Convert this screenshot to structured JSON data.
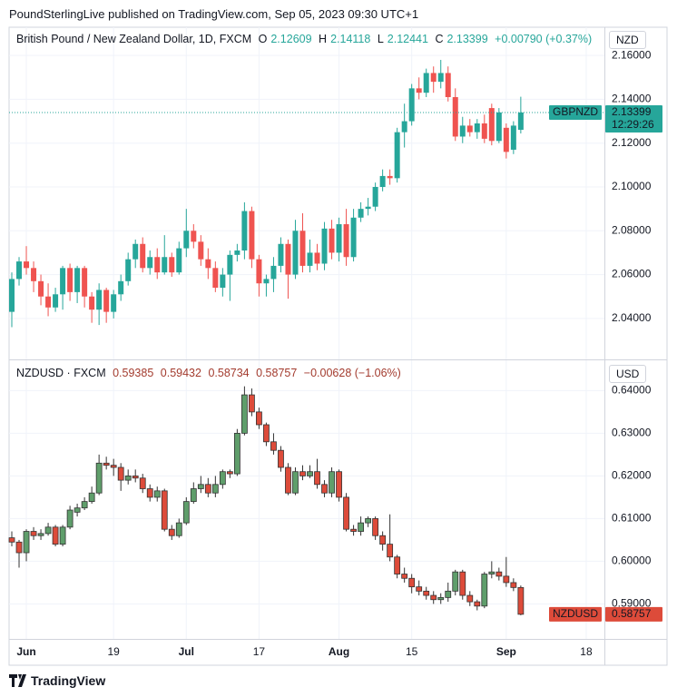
{
  "header": {
    "text": "PoundSterlingLive published on TradingView.com, Sep 05, 2023 09:30 UTC+1"
  },
  "chart_data": [
    {
      "type": "candlestick",
      "title": "British Pound / New Zealand Dollar, 1D, FXCM",
      "ohlc_labels": [
        "O",
        "H",
        "L",
        "C"
      ],
      "change_label": "+0.00790 (+0.37%)",
      "symbol": "GBPNZD",
      "countdown": "12:29:26",
      "currency": "NZD",
      "up_color": "#26a69a",
      "down_color": "#ef5350",
      "grid": true,
      "xlim": [
        -0.375,
        81.5
      ],
      "ylim": [
        2.0213,
        2.1729
      ],
      "yticks": [
        {
          "value": 2.04,
          "label": "2.04000"
        },
        {
          "value": 2.06,
          "label": "2.06000"
        },
        {
          "value": 2.08,
          "label": "2.08000"
        },
        {
          "value": 2.1,
          "label": "2.10000"
        },
        {
          "value": 2.12,
          "label": "2.12000"
        },
        {
          "value": 2.14,
          "label": "2.14000"
        },
        {
          "value": 2.16,
          "label": "2.16000"
        }
      ],
      "x": [
        0,
        1,
        2,
        3,
        4,
        5,
        6,
        7,
        8,
        9,
        10,
        11,
        12,
        13,
        14,
        15,
        16,
        17,
        18,
        19,
        20,
        21,
        22,
        23,
        24,
        25,
        26,
        27,
        28,
        29,
        30,
        31,
        32,
        33,
        34,
        35,
        36,
        37,
        38,
        39,
        40,
        41,
        42,
        43,
        44,
        45,
        46,
        47,
        48,
        49,
        50,
        51,
        52,
        53,
        54,
        55,
        56,
        57,
        58,
        59,
        60,
        61,
        62,
        63,
        64,
        65,
        66,
        67,
        68,
        69,
        70
      ],
      "open": [
        2.043,
        2.058,
        2.066,
        2.063,
        2.057,
        2.05,
        2.045,
        2.051,
        2.063,
        2.052,
        2.063,
        2.05,
        2.044,
        2.053,
        2.043,
        2.051,
        2.057,
        2.067,
        2.074,
        2.063,
        2.068,
        2.061,
        2.068,
        2.061,
        2.072,
        2.08,
        2.075,
        2.067,
        2.063,
        2.054,
        2.06,
        2.069,
        2.071,
        2.089,
        2.067,
        2.056,
        2.058,
        2.064,
        2.074,
        2.06,
        2.08,
        2.064,
        2.07,
        2.065,
        2.081,
        2.07,
        2.083,
        2.068,
        2.086,
        2.09,
        2.091,
        2.1,
        2.105,
        2.104,
        2.125,
        2.13,
        2.145,
        2.143,
        2.152,
        2.148,
        2.152,
        2.141,
        2.123,
        2.128,
        2.125,
        2.129,
        2.136,
        2.121,
        2.127,
        2.117,
        2.12609
      ],
      "high": [
        2.061,
        2.068,
        2.073,
        2.066,
        2.06,
        2.056,
        2.054,
        2.064,
        2.065,
        2.064,
        2.064,
        2.052,
        2.056,
        2.054,
        2.053,
        2.06,
        2.07,
        2.076,
        2.077,
        2.071,
        2.072,
        2.078,
        2.07,
        2.075,
        2.09,
        2.083,
        2.078,
        2.072,
        2.066,
        2.063,
        2.071,
        2.074,
        2.093,
        2.091,
        2.069,
        2.06,
        2.068,
        2.077,
        2.076,
        2.085,
        2.088,
        2.076,
        2.074,
        2.084,
        2.085,
        2.086,
        2.09,
        2.09,
        2.093,
        2.095,
        2.102,
        2.108,
        2.108,
        2.127,
        2.138,
        2.147,
        2.15,
        2.154,
        2.155,
        2.158,
        2.155,
        2.145,
        2.132,
        2.131,
        2.131,
        2.133,
        2.138,
        2.136,
        2.129,
        2.13,
        2.14118
      ],
      "low": [
        2.036,
        2.055,
        2.06,
        2.052,
        2.046,
        2.041,
        2.043,
        2.044,
        2.048,
        2.047,
        2.045,
        2.038,
        2.037,
        2.038,
        2.04,
        2.048,
        2.055,
        2.063,
        2.061,
        2.06,
        2.058,
        2.06,
        2.059,
        2.06,
        2.068,
        2.072,
        2.064,
        2.058,
        2.052,
        2.05,
        2.048,
        2.066,
        2.067,
        2.063,
        2.05,
        2.05,
        2.052,
        2.061,
        2.049,
        2.058,
        2.061,
        2.061,
        2.062,
        2.062,
        2.067,
        2.066,
        2.064,
        2.066,
        2.084,
        2.087,
        2.089,
        2.098,
        2.101,
        2.102,
        2.118,
        2.128,
        2.14,
        2.141,
        2.143,
        2.145,
        2.139,
        2.121,
        2.12,
        2.123,
        2.122,
        2.12,
        2.119,
        2.12,
        2.113,
        2.115,
        2.12441
      ],
      "close": [
        2.058,
        2.066,
        2.063,
        2.057,
        2.05,
        2.045,
        2.051,
        2.063,
        2.052,
        2.063,
        2.05,
        2.044,
        2.053,
        2.043,
        2.051,
        2.057,
        2.067,
        2.074,
        2.063,
        2.068,
        2.061,
        2.068,
        2.061,
        2.072,
        2.08,
        2.075,
        2.067,
        2.063,
        2.054,
        2.06,
        2.069,
        2.071,
        2.089,
        2.067,
        2.056,
        2.058,
        2.064,
        2.074,
        2.06,
        2.08,
        2.064,
        2.07,
        2.065,
        2.081,
        2.07,
        2.083,
        2.068,
        2.086,
        2.09,
        2.091,
        2.1,
        2.105,
        2.104,
        2.125,
        2.13,
        2.145,
        2.143,
        2.152,
        2.148,
        2.152,
        2.141,
        2.123,
        2.128,
        2.125,
        2.129,
        2.122,
        2.121,
        2.134,
        2.116,
        2.128,
        2.13399
      ]
    },
    {
      "type": "candlestick",
      "title": "NZDUSD · FXCM",
      "change_label": "−0.00628 (−1.06%)",
      "symbol": "NZDUSD",
      "currency": "USD",
      "up_color": "#5f9e6b",
      "down_color": "#dd4b3a",
      "grid": true,
      "xlim": [
        -0.375,
        81.5
      ],
      "ylim": [
        0.5818,
        0.6471
      ],
      "yticks": [
        {
          "value": 0.59,
          "label": "0.59000"
        },
        {
          "value": 0.6,
          "label": "0.60000"
        },
        {
          "value": 0.61,
          "label": "0.61000"
        },
        {
          "value": 0.62,
          "label": "0.62000"
        },
        {
          "value": 0.63,
          "label": "0.63000"
        },
        {
          "value": 0.64,
          "label": "0.64000"
        }
      ],
      "xticks": [
        {
          "value": 2,
          "label": "Jun"
        },
        {
          "value": 14,
          "label": "19"
        },
        {
          "value": 24,
          "label": "Jul"
        },
        {
          "value": 34,
          "label": "17"
        },
        {
          "value": 45,
          "label": "Aug"
        },
        {
          "value": 55,
          "label": "15"
        },
        {
          "value": 68,
          "label": "Sep"
        },
        {
          "value": 79,
          "label": "18"
        }
      ],
      "x": [
        0,
        1,
        2,
        3,
        4,
        5,
        6,
        7,
        8,
        9,
        10,
        11,
        12,
        13,
        14,
        15,
        16,
        17,
        18,
        19,
        20,
        21,
        22,
        23,
        24,
        25,
        26,
        27,
        28,
        29,
        30,
        31,
        32,
        33,
        34,
        35,
        36,
        37,
        38,
        39,
        40,
        41,
        42,
        43,
        44,
        45,
        46,
        47,
        48,
        49,
        50,
        51,
        52,
        53,
        54,
        55,
        56,
        57,
        58,
        59,
        60,
        61,
        62,
        63,
        64,
        65,
        66,
        67,
        68,
        69,
        70
      ],
      "open": [
        0.6055,
        0.6045,
        0.602,
        0.607,
        0.606,
        0.6065,
        0.608,
        0.604,
        0.608,
        0.6115,
        0.6125,
        0.614,
        0.616,
        0.623,
        0.6225,
        0.622,
        0.619,
        0.62,
        0.6195,
        0.617,
        0.615,
        0.6165,
        0.6075,
        0.606,
        0.609,
        0.614,
        0.617,
        0.618,
        0.616,
        0.618,
        0.621,
        0.6205,
        0.63,
        0.639,
        0.635,
        0.632,
        0.628,
        0.626,
        0.622,
        0.616,
        0.621,
        0.62,
        0.621,
        0.618,
        0.616,
        0.621,
        0.615,
        0.6075,
        0.607,
        0.609,
        0.61,
        0.606,
        0.604,
        0.601,
        0.597,
        0.596,
        0.594,
        0.593,
        0.592,
        0.591,
        0.5915,
        0.593,
        0.5975,
        0.592,
        0.5905,
        0.5895,
        0.597,
        0.5975,
        0.5965,
        0.595,
        0.59385
      ],
      "high": [
        0.607,
        0.605,
        0.6075,
        0.608,
        0.6075,
        0.609,
        0.6085,
        0.6085,
        0.613,
        0.6135,
        0.615,
        0.6175,
        0.625,
        0.6245,
        0.624,
        0.623,
        0.6215,
        0.6215,
        0.6205,
        0.618,
        0.6175,
        0.617,
        0.6085,
        0.61,
        0.615,
        0.6185,
        0.62,
        0.6195,
        0.62,
        0.6215,
        0.6215,
        0.631,
        0.641,
        0.6405,
        0.636,
        0.6325,
        0.63,
        0.627,
        0.623,
        0.622,
        0.6225,
        0.6225,
        0.624,
        0.619,
        0.622,
        0.6215,
        0.616,
        0.6085,
        0.6105,
        0.6105,
        0.6105,
        0.607,
        0.611,
        0.6015,
        0.5985,
        0.597,
        0.5955,
        0.594,
        0.593,
        0.5925,
        0.595,
        0.598,
        0.598,
        0.593,
        0.591,
        0.5975,
        0.6,
        0.5985,
        0.601,
        0.596,
        0.59432
      ],
      "low": [
        0.6035,
        0.5985,
        0.6,
        0.605,
        0.605,
        0.606,
        0.6035,
        0.6035,
        0.6075,
        0.6105,
        0.612,
        0.6135,
        0.6155,
        0.6215,
        0.62,
        0.6165,
        0.618,
        0.6185,
        0.616,
        0.614,
        0.614,
        0.607,
        0.605,
        0.6055,
        0.6085,
        0.6135,
        0.616,
        0.615,
        0.615,
        0.617,
        0.6195,
        0.62,
        0.6295,
        0.634,
        0.631,
        0.627,
        0.625,
        0.621,
        0.6155,
        0.6155,
        0.619,
        0.6195,
        0.617,
        0.615,
        0.615,
        0.614,
        0.607,
        0.606,
        0.606,
        0.608,
        0.605,
        0.6025,
        0.6,
        0.596,
        0.595,
        0.5925,
        0.592,
        0.591,
        0.59,
        0.59,
        0.5905,
        0.592,
        0.591,
        0.5895,
        0.5885,
        0.589,
        0.596,
        0.5955,
        0.594,
        0.593,
        0.58734
      ],
      "close": [
        0.6045,
        0.602,
        0.607,
        0.606,
        0.6065,
        0.608,
        0.604,
        0.608,
        0.612,
        0.6125,
        0.614,
        0.616,
        0.623,
        0.6225,
        0.622,
        0.619,
        0.62,
        0.6195,
        0.617,
        0.615,
        0.6165,
        0.6075,
        0.606,
        0.609,
        0.614,
        0.617,
        0.618,
        0.616,
        0.618,
        0.621,
        0.6205,
        0.63,
        0.639,
        0.635,
        0.632,
        0.628,
        0.626,
        0.622,
        0.616,
        0.621,
        0.62,
        0.621,
        0.618,
        0.616,
        0.621,
        0.615,
        0.6075,
        0.607,
        0.609,
        0.61,
        0.606,
        0.604,
        0.601,
        0.597,
        0.596,
        0.594,
        0.593,
        0.592,
        0.591,
        0.5915,
        0.593,
        0.5975,
        0.592,
        0.5905,
        0.5895,
        0.597,
        0.5975,
        0.5965,
        0.595,
        0.59385,
        0.58757
      ]
    }
  ],
  "footer": {
    "logo_text": "TradingView"
  }
}
